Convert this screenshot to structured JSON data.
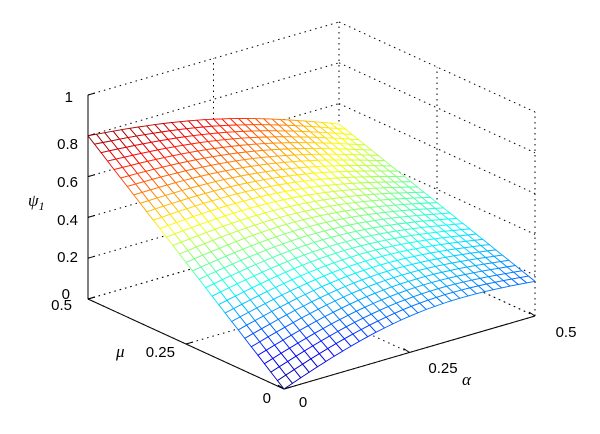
{
  "chart_data": {
    "type": "surface",
    "zlabel": "ψ",
    "zlabel_subscript": "1",
    "xlabel": "α",
    "ylabel": "μ",
    "xlim": [
      0,
      0.5
    ],
    "ylim": [
      0,
      0.5
    ],
    "zlim": [
      0,
      1
    ],
    "x_ticks": [
      "0",
      "0.25",
      "0.5"
    ],
    "y_ticks": [
      "0",
      "0.25",
      "0.5"
    ],
    "z_ticks": [
      "0",
      "0.2",
      "0.4",
      "0.6",
      "0.8",
      "1"
    ],
    "grid": true,
    "colormap": "jet",
    "surface_samples": [
      {
        "alpha": 0,
        "mu": 0,
        "psi1": 0.0
      },
      {
        "alpha": 0,
        "mu": 0.5,
        "psi1": 0.8
      },
      {
        "alpha": 0.5,
        "mu": 0,
        "psi1": 0.22
      },
      {
        "alpha": 0.5,
        "mu": 0.5,
        "psi1": 0.55
      }
    ]
  },
  "axes_labels": {
    "z_main": "ψ",
    "z_sub": "1",
    "x": "α",
    "y": "μ"
  },
  "ticks": {
    "z": [
      "0",
      "0.2",
      "0.4",
      "0.6",
      "0.8",
      "1"
    ],
    "y": [
      "0.5",
      "0.25",
      "0"
    ],
    "x": [
      "0",
      "0.25",
      "0.5"
    ]
  }
}
